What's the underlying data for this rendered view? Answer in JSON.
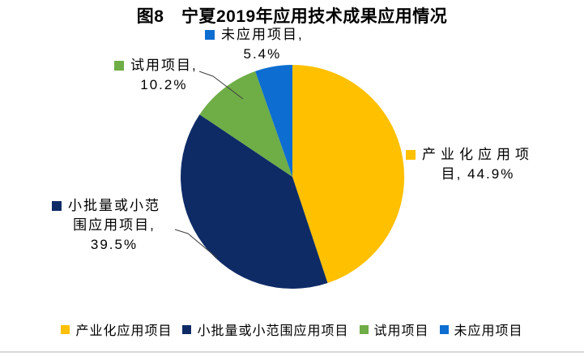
{
  "title": "图8　宁夏2019年应用技术成果应用情况",
  "chart_data": {
    "type": "pie",
    "title": "图8　宁夏2019年应用技术成果应用情况",
    "unit": "%",
    "start_angle_deg": 0,
    "direction": "clockwise",
    "slices": [
      {
        "label": "产业化应用项目",
        "value": 44.9,
        "color": "#FFC000"
      },
      {
        "label": "小批量或小范围应用项目",
        "value": 39.5,
        "color": "#0E2B66"
      },
      {
        "label": "试用项目",
        "value": 10.2,
        "color": "#6FAD47"
      },
      {
        "label": "未应用项目",
        "value": 5.4,
        "color": "#0D6DD1"
      }
    ],
    "data_labels": [
      "产业化应用项目, 44.9%",
      "小批量或小范围应用项目, 39.5%",
      "试用项目, 10.2%",
      "未应用项目, 5.4%"
    ],
    "legend_position": "bottom",
    "legend": [
      "产业化应用项目",
      "小批量或小范围应用项目",
      "试用项目",
      "未应用项目"
    ]
  },
  "callouts": {
    "unapplied": {
      "line1": "未应用项目,",
      "line2": "5.4%"
    },
    "trial": {
      "line1": "试用项目,",
      "line2": "10.2%"
    },
    "industrial": {
      "line1": "产业化应用项",
      "line2": "目, 44.9%"
    },
    "smallbatch": {
      "line1": "小批量或小范",
      "line2": "围应用项目,",
      "line3": "39.5%"
    }
  }
}
